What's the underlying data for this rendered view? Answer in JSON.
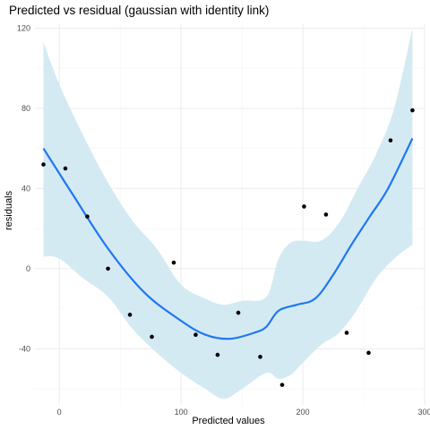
{
  "chart_data": {
    "type": "scatter",
    "title": "Predicted vs residual (gaussian with identity link)",
    "xlabel": "Predicted values",
    "ylabel": "residuals",
    "xlim": [
      -20,
      300
    ],
    "ylim": [
      -68,
      122
    ],
    "x_ticks": [
      0,
      100,
      200,
      300
    ],
    "y_ticks": [
      -40,
      0,
      40,
      80,
      120
    ],
    "x_tick_labels": [
      "0",
      "100",
      "200",
      "300"
    ],
    "y_tick_labels": [
      "-40",
      "0",
      "40",
      "80",
      "120"
    ],
    "grid": true,
    "points": [
      {
        "x": -13,
        "y": 52
      },
      {
        "x": 5,
        "y": 50
      },
      {
        "x": 23,
        "y": 26
      },
      {
        "x": 40,
        "y": 0
      },
      {
        "x": 58,
        "y": -23
      },
      {
        "x": 76,
        "y": -34
      },
      {
        "x": 94,
        "y": 3
      },
      {
        "x": 112,
        "y": -33
      },
      {
        "x": 130,
        "y": -43
      },
      {
        "x": 147,
        "y": -22
      },
      {
        "x": 165,
        "y": -44
      },
      {
        "x": 183,
        "y": -58
      },
      {
        "x": 201,
        "y": 31
      },
      {
        "x": 219,
        "y": 27
      },
      {
        "x": 236,
        "y": -32
      },
      {
        "x": 254,
        "y": -42
      },
      {
        "x": 272,
        "y": 64
      },
      {
        "x": 290,
        "y": 79
      }
    ],
    "smooth_line": [
      {
        "x": -13,
        "y": 60
      },
      {
        "x": 10,
        "y": 38
      },
      {
        "x": 40,
        "y": 10
      },
      {
        "x": 70,
        "y": -12
      },
      {
        "x": 100,
        "y": -26
      },
      {
        "x": 120,
        "y": -33
      },
      {
        "x": 140,
        "y": -35
      },
      {
        "x": 160,
        "y": -32
      },
      {
        "x": 170,
        "y": -29
      },
      {
        "x": 180,
        "y": -21
      },
      {
        "x": 195,
        "y": -18
      },
      {
        "x": 210,
        "y": -15
      },
      {
        "x": 225,
        "y": -3
      },
      {
        "x": 240,
        "y": 12
      },
      {
        "x": 255,
        "y": 26
      },
      {
        "x": 270,
        "y": 40
      },
      {
        "x": 290,
        "y": 65
      }
    ],
    "confidence_band": {
      "x": [
        -13,
        0,
        20,
        40,
        60,
        80,
        100,
        120,
        135,
        150,
        170,
        180,
        190,
        200,
        215,
        230,
        245,
        260,
        275,
        290
      ],
      "upper": [
        113,
        92,
        66,
        43,
        24,
        10,
        -8,
        -15,
        -18,
        -16,
        -14,
        5,
        13,
        14,
        14,
        23,
        40,
        57,
        80,
        120
      ],
      "lower": [
        6,
        5,
        -5,
        -14,
        -30,
        -42,
        -52,
        -60,
        -65,
        -60,
        -52,
        -55,
        -53,
        -47,
        -38,
        -32,
        -20,
        -5,
        5,
        12
      ]
    },
    "colors": {
      "line": "#1f77f4",
      "band": "#d4eaf3",
      "points": "#000000"
    }
  }
}
